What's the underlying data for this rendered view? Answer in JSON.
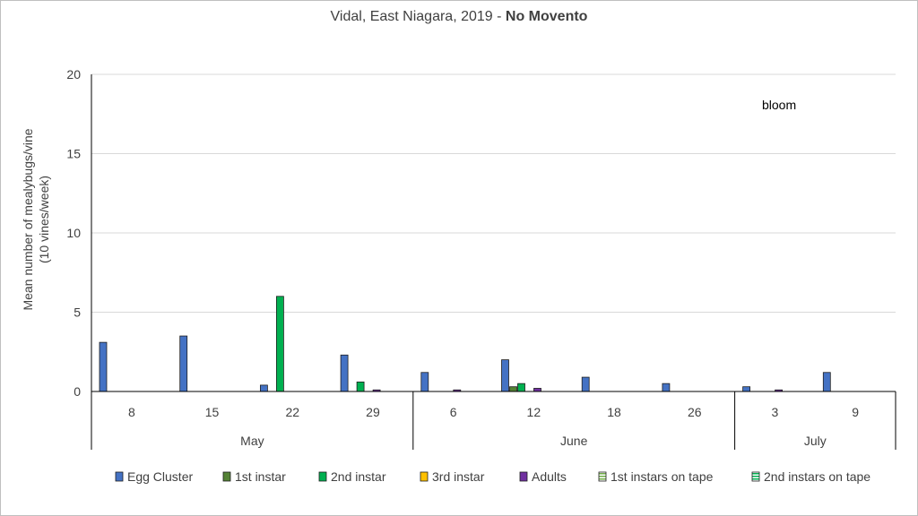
{
  "chart_data": {
    "type": "bar",
    "title": "Vidal, East Niagara, 2019 - ",
    "title_bold": "No Movento",
    "ylabel_line1": "Mean number of mealybugs/vine",
    "ylabel_line2": "(10 vines/week)",
    "ylim": [
      0,
      20
    ],
    "yticks": [
      0,
      5,
      10,
      15,
      20
    ],
    "grid": true,
    "legend_position": "bottom",
    "categories": [
      "8",
      "15",
      "22",
      "29",
      "6",
      "12",
      "18",
      "26",
      "3",
      "9"
    ],
    "months": [
      {
        "label": "May",
        "span": 4
      },
      {
        "label": "June",
        "span": 4
      },
      {
        "label": "July",
        "span": 2
      }
    ],
    "annotation": "bloom",
    "series": [
      {
        "name": "Egg Cluster",
        "color": "#4472c4",
        "pattern": "solid",
        "values": [
          3.1,
          3.5,
          0.4,
          2.3,
          1.2,
          2.0,
          0.9,
          0.5,
          0.3,
          1.2
        ]
      },
      {
        "name": "1st instar",
        "color": "#548235",
        "pattern": "solid",
        "values": [
          0,
          0,
          0,
          0,
          0,
          0.3,
          0,
          0,
          0,
          0
        ]
      },
      {
        "name": "2nd instar",
        "color": "#00b050",
        "pattern": "solid",
        "values": [
          0,
          0,
          6.0,
          0.6,
          0,
          0.5,
          0,
          0,
          0,
          0
        ]
      },
      {
        "name": "3rd instar",
        "color": "#ffc000",
        "pattern": "solid",
        "values": [
          0,
          0,
          0,
          0,
          0,
          0,
          0,
          0,
          0,
          0
        ]
      },
      {
        "name": "Adults",
        "color": "#7030a0",
        "pattern": "solid",
        "values": [
          0,
          0,
          0,
          0.1,
          0.1,
          0.2,
          0,
          0,
          0.1,
          0
        ]
      },
      {
        "name": "1st instars on tape",
        "color": "#70ad47",
        "pattern": "striped",
        "values": [
          0,
          0,
          0,
          0,
          0,
          0,
          0,
          0,
          0,
          0
        ]
      },
      {
        "name": "2nd instars on tape",
        "color": "#00b050",
        "pattern": "striped",
        "values": [
          0,
          0,
          0,
          0,
          0,
          0,
          0,
          0,
          0,
          0
        ]
      }
    ]
  }
}
